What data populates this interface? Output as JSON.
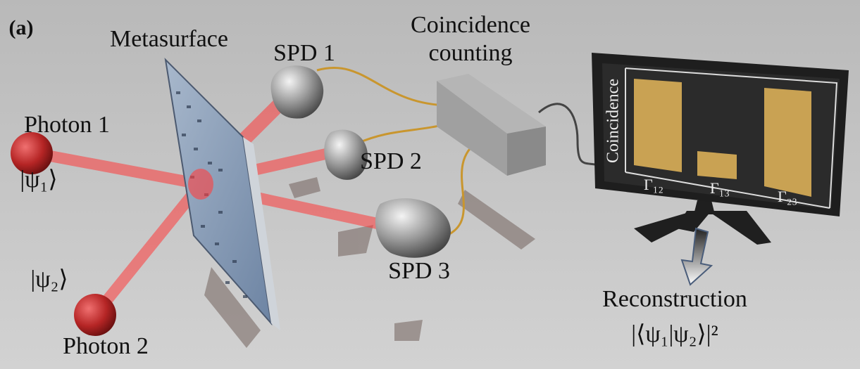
{
  "panel_label": "(a)",
  "labels": {
    "metasurface": "Metasurface",
    "spd1": "SPD 1",
    "spd2": "SPD 2",
    "spd3": "SPD 3",
    "coincidence_line1": "Coincidence",
    "coincidence_line2": "counting",
    "photon1": "Photon 1",
    "psi1": "|ψ₁⟩",
    "psi2": "|ψ₂⟩",
    "photon2": "Photon 2",
    "reconstruction": "Reconstruction",
    "overlap": "|⟨ψ₁|ψ₂⟩|²"
  },
  "monitor": {
    "axis_label": "Coincidence",
    "bar_labels": [
      "Γ₁₂",
      "Γ₁₃",
      "Γ₂₃"
    ]
  }
}
